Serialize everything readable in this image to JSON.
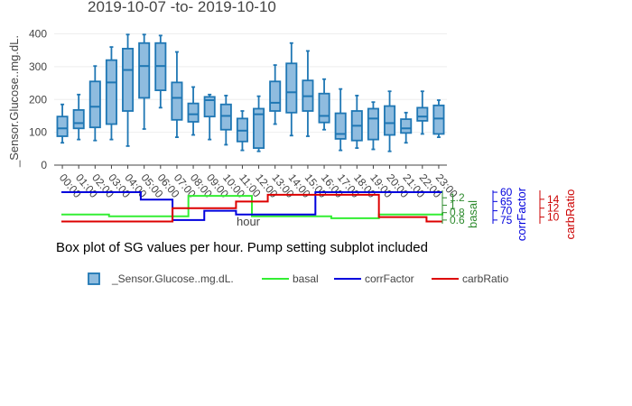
{
  "chart_data": {
    "type": "box",
    "title": "2019-10-07 -to- 2019-10-10",
    "caption": "Box plot of SG values per hour. Pump setting subplot included",
    "xlabel": "hour",
    "ylabel": "_Sensor.Glucose..mg.dL.",
    "ylim": [
      0,
      440
    ],
    "yticks": [
      0,
      100,
      200,
      300,
      400
    ],
    "grid": true,
    "legend_position": "bottom",
    "categories": [
      "00:00",
      "01:00",
      "02:00",
      "03:00",
      "04:00",
      "05:00",
      "06:00",
      "07:00",
      "08:00",
      "09:00",
      "10:00",
      "11:00",
      "12:00",
      "13:00",
      "14:00",
      "15:00",
      "16:00",
      "17:00",
      "18:00",
      "19:00",
      "20:00",
      "21:00",
      "22:00",
      "23:00"
    ],
    "series": [
      {
        "name": "_Sensor.Glucose..mg.dL.",
        "color": "#1f77b4",
        "fill": "#8fbcdf",
        "boxes": [
          {
            "min": 68,
            "q1": 88,
            "median": 112,
            "q3": 148,
            "max": 185
          },
          {
            "min": 78,
            "q1": 112,
            "median": 128,
            "q3": 168,
            "max": 215
          },
          {
            "min": 75,
            "q1": 115,
            "median": 178,
            "q3": 255,
            "max": 302
          },
          {
            "min": 78,
            "q1": 125,
            "median": 252,
            "q3": 320,
            "max": 360
          },
          {
            "min": 58,
            "q1": 165,
            "median": 290,
            "q3": 355,
            "max": 398
          },
          {
            "min": 110,
            "q1": 205,
            "median": 302,
            "q3": 372,
            "max": 398
          },
          {
            "min": 175,
            "q1": 228,
            "median": 302,
            "q3": 372,
            "max": 395
          },
          {
            "min": 85,
            "q1": 138,
            "median": 205,
            "q3": 252,
            "max": 345
          },
          {
            "min": 92,
            "q1": 132,
            "median": 155,
            "q3": 188,
            "max": 238
          },
          {
            "min": 78,
            "q1": 148,
            "median": 198,
            "q3": 208,
            "max": 215
          },
          {
            "min": 62,
            "q1": 108,
            "median": 150,
            "q3": 185,
            "max": 212
          },
          {
            "min": 45,
            "q1": 72,
            "median": 105,
            "q3": 142,
            "max": 165
          },
          {
            "min": 42,
            "q1": 52,
            "median": 155,
            "q3": 172,
            "max": 210
          },
          {
            "min": 125,
            "q1": 165,
            "median": 190,
            "q3": 255,
            "max": 305
          },
          {
            "min": 90,
            "q1": 160,
            "median": 222,
            "q3": 310,
            "max": 372
          },
          {
            "min": 88,
            "q1": 165,
            "median": 210,
            "q3": 258,
            "max": 348
          },
          {
            "min": 108,
            "q1": 130,
            "median": 150,
            "q3": 218,
            "max": 262
          },
          {
            "min": 45,
            "q1": 80,
            "median": 95,
            "q3": 158,
            "max": 232
          },
          {
            "min": 52,
            "q1": 75,
            "median": 120,
            "q3": 165,
            "max": 212
          },
          {
            "min": 48,
            "q1": 78,
            "median": 142,
            "q3": 172,
            "max": 192
          },
          {
            "min": 42,
            "q1": 92,
            "median": 128,
            "q3": 180,
            "max": 225
          },
          {
            "min": 68,
            "q1": 98,
            "median": 112,
            "q3": 140,
            "max": 160
          },
          {
            "min": 95,
            "q1": 135,
            "median": 148,
            "q3": 175,
            "max": 225
          },
          {
            "min": 85,
            "q1": 95,
            "median": 142,
            "q3": 182,
            "max": 198
          }
        ]
      }
    ],
    "subplot": {
      "x_range": [
        0,
        24
      ],
      "series": [
        {
          "name": "basal",
          "color": "#33ee33",
          "axis_label": "basal",
          "axis_color": "#2e8b2e",
          "axis_range": [
            0.5,
            1.4
          ],
          "axis_ticks": [
            "0.6",
            "0.8",
            "1",
            "1.2"
          ],
          "axis_tick_values": [
            0.6,
            0.8,
            1.0,
            1.2
          ],
          "steps": [
            [
              0,
              0.75
            ],
            [
              3,
              0.7
            ],
            [
              8,
              1.25
            ],
            [
              12,
              0.7
            ],
            [
              17,
              0.65
            ],
            [
              20,
              0.75
            ],
            [
              24,
              0.8
            ]
          ]
        },
        {
          "name": "corrFactor",
          "color": "#0000dd",
          "axis_label": "corrFactor",
          "axis_color": "#0000dd",
          "axis_range": [
            77,
            59
          ],
          "axis_ticks": [
            "60",
            "65",
            "70",
            "75"
          ],
          "axis_tick_values": [
            60,
            65,
            70,
            75
          ],
          "steps": [
            [
              0,
              60
            ],
            [
              5,
              64
            ],
            [
              7,
              75
            ],
            [
              9,
              70
            ],
            [
              11,
              72
            ],
            [
              16,
              60
            ],
            [
              23,
              60
            ]
          ]
        },
        {
          "name": "carbRatio",
          "color": "#dd0000",
          "axis_label": "carbRatio",
          "axis_color": "#cc0000",
          "axis_range": [
            8.5,
            16
          ],
          "axis_ticks": [
            "10",
            "12",
            "14"
          ],
          "axis_tick_values": [
            10,
            12,
            14
          ],
          "steps": [
            [
              0,
              9
            ],
            [
              7,
              12
            ],
            [
              11,
              13.5
            ],
            [
              13,
              15
            ],
            [
              20,
              10
            ],
            [
              23,
              9
            ]
          ]
        }
      ]
    }
  }
}
